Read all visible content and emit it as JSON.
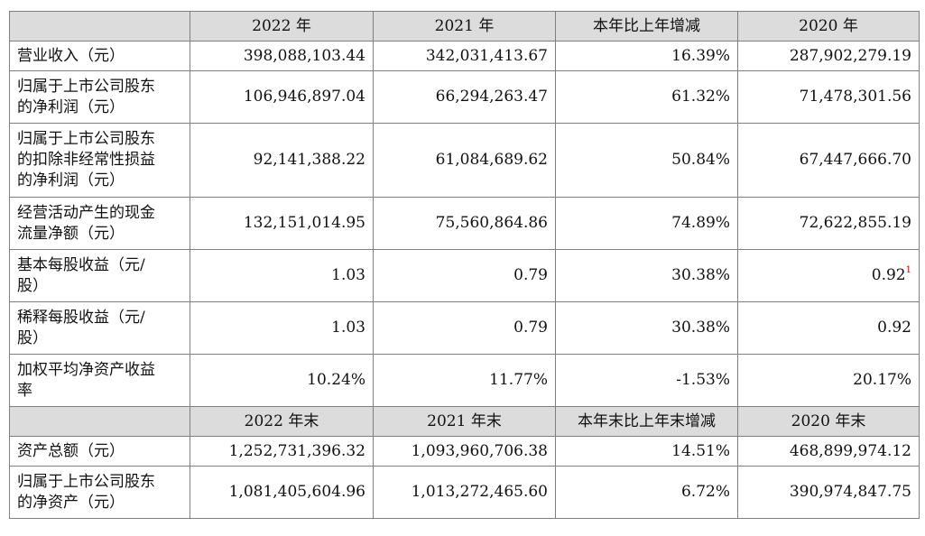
{
  "header1": {
    "c1": "2022 年",
    "c2": "2021 年",
    "c3": "本年比上年增减",
    "c4": "2020 年"
  },
  "rows1": [
    {
      "label1": "营业收入（元）",
      "label2": "",
      "label3": "",
      "v1": "398,088,103.44",
      "v2": "342,031,413.67",
      "v3": "16.39%",
      "v4": "287,902,279.19"
    },
    {
      "label1": "归属于上市公司股东",
      "label2": "的净利润（元）",
      "label3": "",
      "v1": "106,946,897.04",
      "v2": "66,294,263.47",
      "v3": "61.32%",
      "v4": "71,478,301.56"
    },
    {
      "label1": "归属于上市公司股东",
      "label2": "的扣除非经常性损益",
      "label3": "的净利润（元）",
      "v1": "92,141,388.22",
      "v2": "61,084,689.62",
      "v3": "50.84%",
      "v4": "67,447,666.70"
    },
    {
      "label1": "经营活动产生的现金",
      "label2": "流量净额（元）",
      "label3": "",
      "v1": "132,151,014.95",
      "v2": "75,560,864.86",
      "v3": "74.89%",
      "v4": "72,622,855.19"
    },
    {
      "label1": "基本每股收益（元/",
      "label2": "股）",
      "label3": "",
      "v1": "1.03",
      "v2": "0.79",
      "v3": "30.38%",
      "v4": "0.92",
      "footnote": "1"
    },
    {
      "label1": "稀释每股收益（元/",
      "label2": "股）",
      "label3": "",
      "v1": "1.03",
      "v2": "0.79",
      "v3": "30.38%",
      "v4": "0.92"
    },
    {
      "label1": "加权平均净资产收益",
      "label2": "率",
      "label3": "",
      "v1": "10.24%",
      "v2": "11.77%",
      "v3": "-1.53%",
      "v4": "20.17%"
    }
  ],
  "header2": {
    "c1": "2022 年末",
    "c2": "2021 年末",
    "c3": "本年末比上年末增减",
    "c4": "2020 年末"
  },
  "rows2": [
    {
      "label1": "资产总额（元）",
      "label2": "",
      "v1": "1,252,731,396.32",
      "v2": "1,093,960,706.38",
      "v3": "14.51%",
      "v4": "468,899,974.12"
    },
    {
      "label1": "归属于上市公司股东",
      "label2": "的净资产（元）",
      "v1": "1,081,405,604.96",
      "v2": "1,013,272,465.60",
      "v3": "6.72%",
      "v4": "390,974,847.75"
    }
  ]
}
